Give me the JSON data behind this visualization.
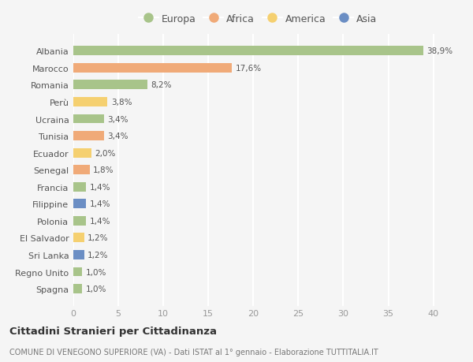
{
  "countries": [
    "Albania",
    "Marocco",
    "Romania",
    "Perù",
    "Ucraina",
    "Tunisia",
    "Ecuador",
    "Senegal",
    "Francia",
    "Filippine",
    "Polonia",
    "El Salvador",
    "Sri Lanka",
    "Regno Unito",
    "Spagna"
  ],
  "values": [
    38.9,
    17.6,
    8.2,
    3.8,
    3.4,
    3.4,
    2.0,
    1.8,
    1.4,
    1.4,
    1.4,
    1.2,
    1.2,
    1.0,
    1.0
  ],
  "labels": [
    "38,9%",
    "17,6%",
    "8,2%",
    "3,8%",
    "3,4%",
    "3,4%",
    "2,0%",
    "1,8%",
    "1,4%",
    "1,4%",
    "1,4%",
    "1,2%",
    "1,2%",
    "1,0%",
    "1,0%"
  ],
  "continents": [
    "Europa",
    "Africa",
    "Europa",
    "America",
    "Europa",
    "Africa",
    "America",
    "Africa",
    "Europa",
    "Asia",
    "Europa",
    "America",
    "Asia",
    "Europa",
    "Europa"
  ],
  "continent_colors": {
    "Europa": "#a8c48a",
    "Africa": "#f0aa78",
    "America": "#f5d070",
    "Asia": "#6b8ec4"
  },
  "legend_order": [
    "Europa",
    "Africa",
    "America",
    "Asia"
  ],
  "title": "Cittadini Stranieri per Cittadinanza",
  "subtitle": "COMUNE DI VENEGONO SUPERIORE (VA) - Dati ISTAT al 1° gennaio - Elaborazione TUTTITALIA.IT",
  "xlim": [
    0,
    41
  ],
  "xticks": [
    0,
    5,
    10,
    15,
    20,
    25,
    30,
    35,
    40
  ],
  "background_color": "#f5f5f5",
  "grid_color": "#ffffff",
  "bar_height": 0.55
}
